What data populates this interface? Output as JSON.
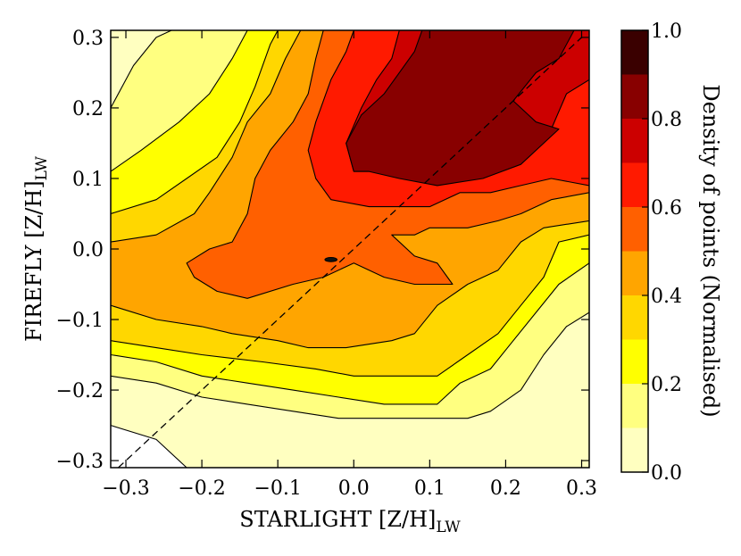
{
  "chart_data": {
    "type": "contour",
    "xlabel": "STARLIGHT [Z/H]",
    "xlabel_subscript": "LW",
    "ylabel": "FIREFLY [Z/H]",
    "ylabel_subscript": "LW",
    "xlim": [
      -0.32,
      0.31
    ],
    "ylim": [
      -0.31,
      0.31
    ],
    "x_ticks": [
      -0.3,
      -0.2,
      -0.1,
      0.0,
      0.1,
      0.2,
      0.3
    ],
    "x_tick_labels": [
      "−0.3",
      "−0.2",
      "−0.1",
      "0.0",
      "0.1",
      "0.2",
      "0.3"
    ],
    "y_ticks": [
      -0.3,
      -0.2,
      -0.1,
      0.0,
      0.1,
      0.2,
      0.3
    ],
    "y_tick_labels": [
      "−0.3",
      "−0.2",
      "−0.1",
      "0.0",
      "0.1",
      "0.2",
      "0.3"
    ],
    "reference_line": {
      "style": "dashed",
      "points": [
        [
          -0.31,
          -0.31
        ],
        [
          0.3,
          0.3
        ]
      ]
    },
    "colorbar": {
      "label": "Density of points (Normalised)",
      "range": [
        0.0,
        1.0
      ],
      "ticks": [
        0.0,
        0.2,
        0.4,
        0.6,
        0.8,
        1.0
      ],
      "tick_labels": [
        "0.0",
        "0.2",
        "0.4",
        "0.6",
        "0.8",
        "1.0"
      ],
      "levels": [
        0.0,
        0.1,
        0.2,
        0.3,
        0.4,
        0.5,
        0.6,
        0.7,
        0.8,
        0.9,
        1.0
      ],
      "colors": [
        "#ffffff",
        "#ffffc0",
        "#ffff80",
        "#ffff00",
        "#ffd700",
        "#ffa500",
        "#ff6000",
        "#ff1a00",
        "#cc0000",
        "#880000",
        "#3a0000"
      ]
    },
    "contours": [
      {
        "level": 0.1,
        "points": [
          [
            -0.32,
            0.31
          ],
          [
            0.31,
            0.31
          ],
          [
            0.31,
            -0.31
          ],
          [
            -0.22,
            -0.31
          ],
          [
            -0.26,
            -0.27
          ],
          [
            -0.32,
            -0.25
          ]
        ]
      },
      {
        "level": 0.2,
        "points": [
          [
            -0.32,
            0.2
          ],
          [
            -0.29,
            0.26
          ],
          [
            -0.26,
            0.3
          ],
          [
            -0.24,
            0.31
          ],
          [
            0.31,
            0.31
          ],
          [
            0.31,
            -0.09
          ],
          [
            0.28,
            -0.11
          ],
          [
            0.25,
            -0.15
          ],
          [
            0.22,
            -0.2
          ],
          [
            0.18,
            -0.23
          ],
          [
            0.15,
            -0.24
          ],
          [
            0.11,
            -0.24
          ],
          [
            0.06,
            -0.24
          ],
          [
            -0.02,
            -0.24
          ],
          [
            -0.08,
            -0.23
          ],
          [
            -0.14,
            -0.22
          ],
          [
            -0.2,
            -0.21
          ],
          [
            -0.26,
            -0.19
          ],
          [
            -0.32,
            -0.18
          ]
        ]
      },
      {
        "level": 0.3,
        "points": [
          [
            -0.32,
            0.11
          ],
          [
            -0.28,
            0.14
          ],
          [
            -0.23,
            0.18
          ],
          [
            -0.19,
            0.22
          ],
          [
            -0.16,
            0.27
          ],
          [
            -0.14,
            0.31
          ],
          [
            0.31,
            0.31
          ],
          [
            0.31,
            -0.02
          ],
          [
            0.27,
            -0.05
          ],
          [
            0.24,
            -0.09
          ],
          [
            0.21,
            -0.13
          ],
          [
            0.18,
            -0.17
          ],
          [
            0.14,
            -0.19
          ],
          [
            0.11,
            -0.22
          ],
          [
            0.04,
            -0.22
          ],
          [
            -0.02,
            -0.21
          ],
          [
            -0.08,
            -0.2
          ],
          [
            -0.14,
            -0.19
          ],
          [
            -0.2,
            -0.18
          ],
          [
            -0.26,
            -0.16
          ],
          [
            -0.32,
            -0.15
          ]
        ]
      },
      {
        "level": 0.4,
        "points": [
          [
            -0.32,
            0.05
          ],
          [
            -0.26,
            0.07
          ],
          [
            -0.22,
            0.1
          ],
          [
            -0.18,
            0.13
          ],
          [
            -0.15,
            0.18
          ],
          [
            -0.13,
            0.23
          ],
          [
            -0.11,
            0.29
          ],
          [
            -0.1,
            0.31
          ],
          [
            0.31,
            0.31
          ],
          [
            0.31,
            0.02
          ],
          [
            0.27,
            0.01
          ],
          [
            0.25,
            -0.04
          ],
          [
            0.22,
            -0.08
          ],
          [
            0.19,
            -0.12
          ],
          [
            0.15,
            -0.15
          ],
          [
            0.11,
            -0.18
          ],
          [
            0.05,
            -0.18
          ],
          [
            0.0,
            -0.18
          ],
          [
            -0.05,
            -0.17
          ],
          [
            -0.12,
            -0.16
          ],
          [
            -0.2,
            -0.15
          ],
          [
            -0.26,
            -0.14
          ],
          [
            -0.32,
            -0.13
          ]
        ]
      },
      {
        "level": 0.5,
        "points": [
          [
            -0.32,
            0.01
          ],
          [
            -0.26,
            0.02
          ],
          [
            -0.21,
            0.05
          ],
          [
            -0.19,
            0.08
          ],
          [
            -0.16,
            0.13
          ],
          [
            -0.14,
            0.18
          ],
          [
            -0.11,
            0.22
          ],
          [
            -0.09,
            0.27
          ],
          [
            -0.07,
            0.31
          ],
          [
            0.31,
            0.31
          ],
          [
            0.31,
            0.04
          ],
          [
            0.25,
            0.03
          ],
          [
            0.22,
            0.01
          ],
          [
            0.19,
            -0.03
          ],
          [
            0.15,
            -0.05
          ],
          [
            0.11,
            -0.08
          ],
          [
            0.08,
            -0.12
          ],
          [
            0.05,
            -0.13
          ],
          [
            -0.01,
            -0.14
          ],
          [
            -0.06,
            -0.14
          ],
          [
            -0.1,
            -0.13
          ],
          [
            -0.16,
            -0.12
          ],
          [
            -0.2,
            -0.11
          ],
          [
            -0.26,
            -0.1
          ],
          [
            -0.32,
            -0.08
          ]
        ]
      },
      {
        "level": 0.6,
        "points": [
          [
            -0.22,
            -0.02
          ],
          [
            -0.19,
            0.0
          ],
          [
            -0.16,
            0.01
          ],
          [
            -0.14,
            0.05
          ],
          [
            -0.13,
            0.1
          ],
          [
            -0.11,
            0.14
          ],
          [
            -0.08,
            0.18
          ],
          [
            -0.06,
            0.22
          ],
          [
            -0.05,
            0.27
          ],
          [
            -0.04,
            0.31
          ],
          [
            0.31,
            0.31
          ],
          [
            0.31,
            0.08
          ],
          [
            0.26,
            0.07
          ],
          [
            0.22,
            0.05
          ],
          [
            0.19,
            0.04
          ],
          [
            0.15,
            0.03
          ],
          [
            0.1,
            0.03
          ],
          [
            0.08,
            0.02
          ],
          [
            0.05,
            0.02
          ],
          [
            0.08,
            -0.01
          ],
          [
            0.11,
            -0.02
          ],
          [
            0.13,
            -0.05
          ],
          [
            0.08,
            -0.05
          ],
          [
            0.04,
            -0.04
          ],
          [
            0.0,
            -0.02
          ],
          [
            -0.04,
            -0.04
          ],
          [
            -0.08,
            -0.05
          ],
          [
            -0.14,
            -0.07
          ],
          [
            -0.18,
            -0.06
          ],
          [
            -0.21,
            -0.04
          ]
        ]
      },
      {
        "level": 0.7,
        "points": [
          [
            -0.03,
            0.07
          ],
          [
            -0.05,
            0.1
          ],
          [
            -0.06,
            0.14
          ],
          [
            -0.05,
            0.18
          ],
          [
            -0.03,
            0.24
          ],
          [
            -0.01,
            0.28
          ],
          [
            0.0,
            0.31
          ],
          [
            0.31,
            0.31
          ],
          [
            0.31,
            0.09
          ],
          [
            0.26,
            0.1
          ],
          [
            0.22,
            0.09
          ],
          [
            0.18,
            0.08
          ],
          [
            0.14,
            0.08
          ],
          [
            0.1,
            0.06
          ],
          [
            0.06,
            0.06
          ],
          [
            0.02,
            0.06
          ]
        ]
      },
      {
        "level": 0.8,
        "points": [
          [
            0.0,
            0.11
          ],
          [
            -0.01,
            0.15
          ],
          [
            0.01,
            0.2
          ],
          [
            0.03,
            0.24
          ],
          [
            0.05,
            0.27
          ],
          [
            0.06,
            0.31
          ],
          [
            0.31,
            0.31
          ],
          [
            0.31,
            0.24
          ],
          [
            0.28,
            0.22
          ],
          [
            0.26,
            0.17
          ],
          [
            0.22,
            0.14
          ],
          [
            0.17,
            0.13
          ],
          [
            0.13,
            0.12
          ],
          [
            0.09,
            0.11
          ],
          [
            0.05,
            0.11
          ]
        ]
      },
      {
        "level": 0.9,
        "points": [
          [
            0.0,
            0.11
          ],
          [
            -0.01,
            0.15
          ],
          [
            0.01,
            0.19
          ],
          [
            0.04,
            0.22
          ],
          [
            0.06,
            0.25
          ],
          [
            0.08,
            0.28
          ],
          [
            0.09,
            0.31
          ],
          [
            0.29,
            0.31
          ],
          [
            0.27,
            0.27
          ],
          [
            0.24,
            0.25
          ],
          [
            0.21,
            0.21
          ],
          [
            0.24,
            0.18
          ],
          [
            0.27,
            0.17
          ],
          [
            0.22,
            0.12
          ],
          [
            0.17,
            0.1
          ],
          [
            0.11,
            0.09
          ],
          [
            0.06,
            0.1
          ],
          [
            0.02,
            0.11
          ]
        ]
      }
    ],
    "isolated_contours": [
      {
        "level": 0.6,
        "shape": "ellipse",
        "center": [
          -0.03,
          -0.015
        ],
        "rx": 0.008,
        "ry": 0.003
      }
    ]
  }
}
